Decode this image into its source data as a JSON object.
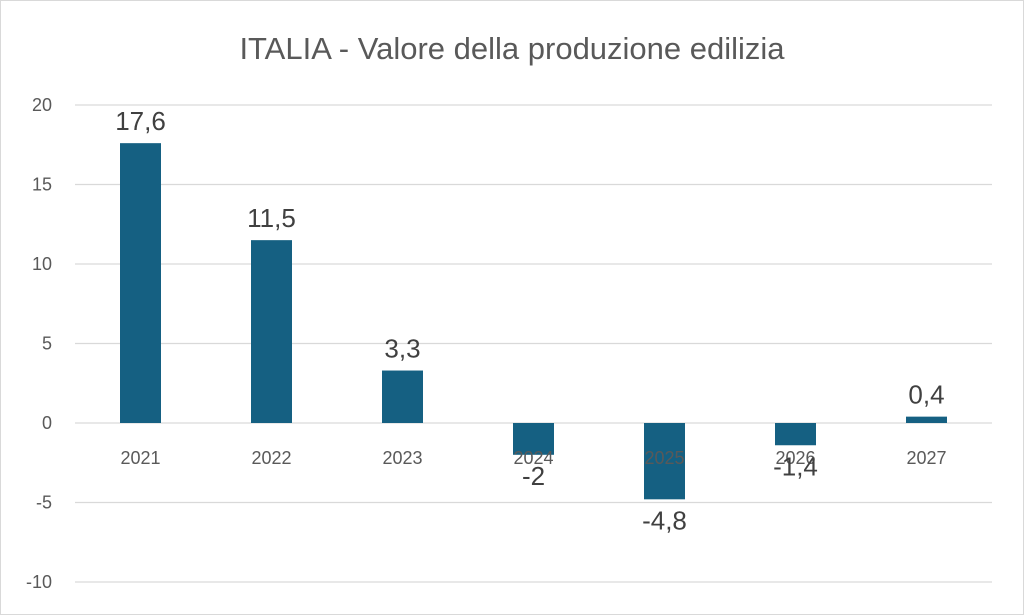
{
  "chart_data": {
    "type": "bar",
    "title": "ITALIA - Valore della produzione edilizia",
    "categories": [
      "2021",
      "2022",
      "2023",
      "2024",
      "2025",
      "2026",
      "2027"
    ],
    "values": [
      17.6,
      11.5,
      3.3,
      -2,
      -4.8,
      -1.4,
      0.4
    ],
    "data_labels": [
      "17,6",
      "11,5",
      "3,3",
      "-2",
      "-4,8",
      "-1,4",
      "0,4"
    ],
    "y_ticks": [
      "-10",
      "-5",
      "0",
      "5",
      "10",
      "15",
      "20"
    ],
    "ylim": [
      -10,
      20
    ],
    "xlabel": "",
    "ylabel": "",
    "grid": true,
    "legend": "none",
    "bar_color": "#156082"
  }
}
